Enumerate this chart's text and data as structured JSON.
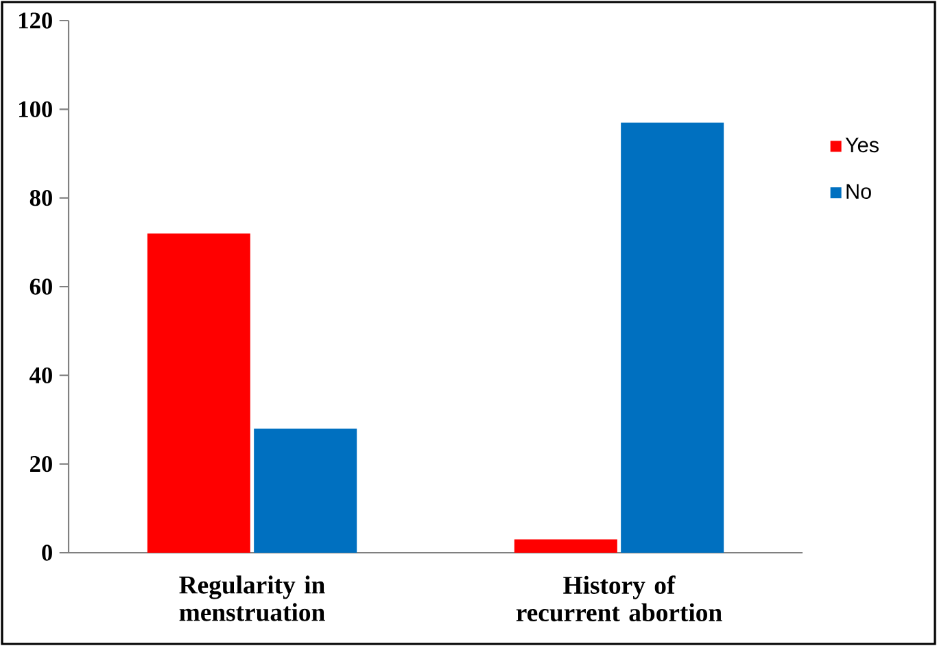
{
  "chart_data": {
    "type": "bar",
    "categories": [
      "Regularity in menstruation",
      "History of recurrent abortion"
    ],
    "series": [
      {
        "name": "Yes",
        "color": "#ff0000",
        "values": [
          72,
          3
        ]
      },
      {
        "name": "No",
        "color": "#0070c0",
        "values": [
          28,
          97
        ]
      }
    ],
    "ylim": [
      0,
      120
    ],
    "yticks": [
      0,
      20,
      40,
      60,
      80,
      100,
      120
    ],
    "legend": "right"
  }
}
